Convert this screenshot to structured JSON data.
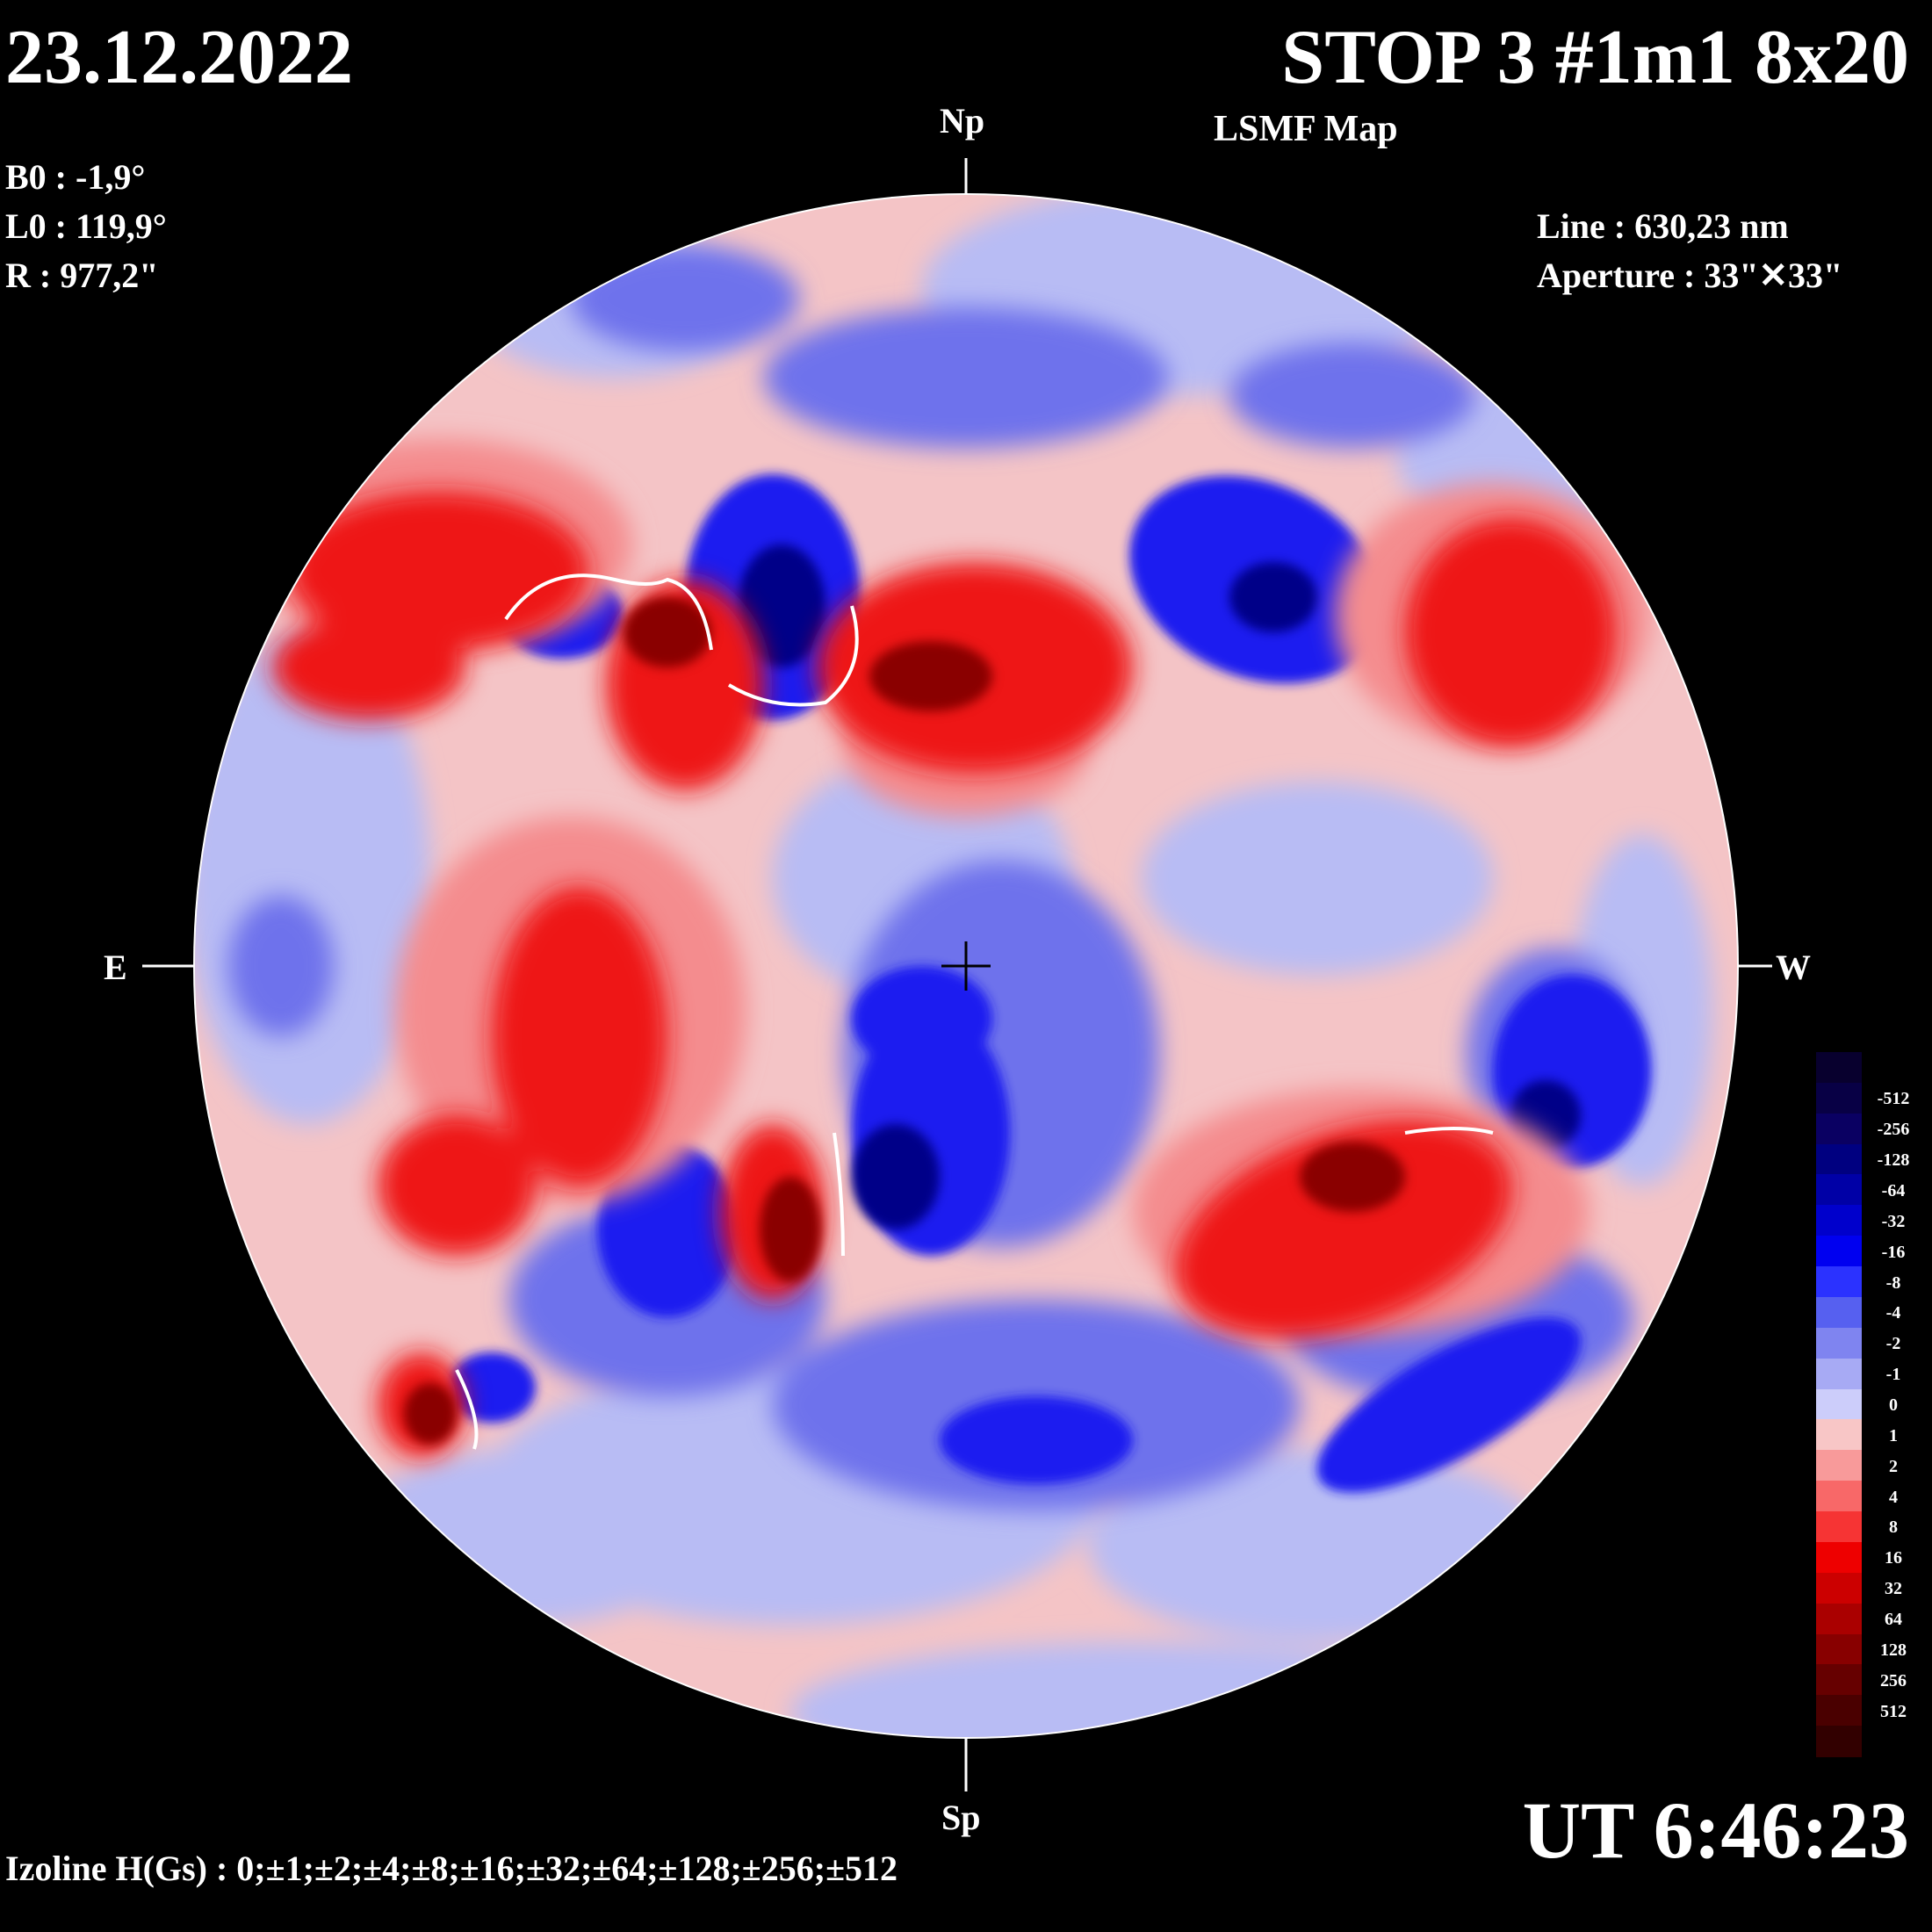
{
  "header": {
    "date": "23.12.2022",
    "station": "STOP 3 #1m1 8x20",
    "subtitle": "LSMF  Map"
  },
  "solar_params": {
    "b0": "B0 : -1,9°",
    "l0": "L0 : 119,9°",
    "r": "R  : 977,2\""
  },
  "instrument": {
    "line": "Line :  630,23 nm",
    "aperture": "Aperture : 33\"✕33\""
  },
  "directions": {
    "north": "Np",
    "south": "Sp",
    "east": "E",
    "west": "W"
  },
  "time": "UT 6:46:23",
  "isolines": "Izoline H(Gs) : 0;±1;±2;±4;±8;±16;±32;±64;±128;±256;±512",
  "colors": {
    "background": "#000000",
    "negative_polarity": "#0000ff",
    "positive_polarity": "#ff0000",
    "zero": "#e0e0f8"
  },
  "legend": [
    {
      "label": "",
      "color": "#08002e"
    },
    {
      "label": "-512",
      "color": "#080045"
    },
    {
      "label": "-256",
      "color": "#0a0062"
    },
    {
      "label": "-128",
      "color": "#000080"
    },
    {
      "label": "-64",
      "color": "#0000a6"
    },
    {
      "label": "-32",
      "color": "#0000cc"
    },
    {
      "label": "-16",
      "color": "#0000f0"
    },
    {
      "label": "-8",
      "color": "#2b32ff"
    },
    {
      "label": "-4",
      "color": "#5660f0"
    },
    {
      "label": "-2",
      "color": "#7f84f0"
    },
    {
      "label": "-1",
      "color": "#a7aaf4"
    },
    {
      "label": "0",
      "color": "#cccdfa"
    },
    {
      "label": "1",
      "color": "#f8c6c6"
    },
    {
      "label": "2",
      "color": "#f89a9a"
    },
    {
      "label": "4",
      "color": "#f86868"
    },
    {
      "label": "8",
      "color": "#f63434"
    },
    {
      "label": "16",
      "color": "#ee0000"
    },
    {
      "label": "32",
      "color": "#cc0000"
    },
    {
      "label": "64",
      "color": "#aa0000"
    },
    {
      "label": "128",
      "color": "#880000"
    },
    {
      "label": "256",
      "color": "#660000"
    },
    {
      "label": "512",
      "color": "#4a0000"
    },
    {
      "label": "",
      "color": "#320000"
    }
  ]
}
